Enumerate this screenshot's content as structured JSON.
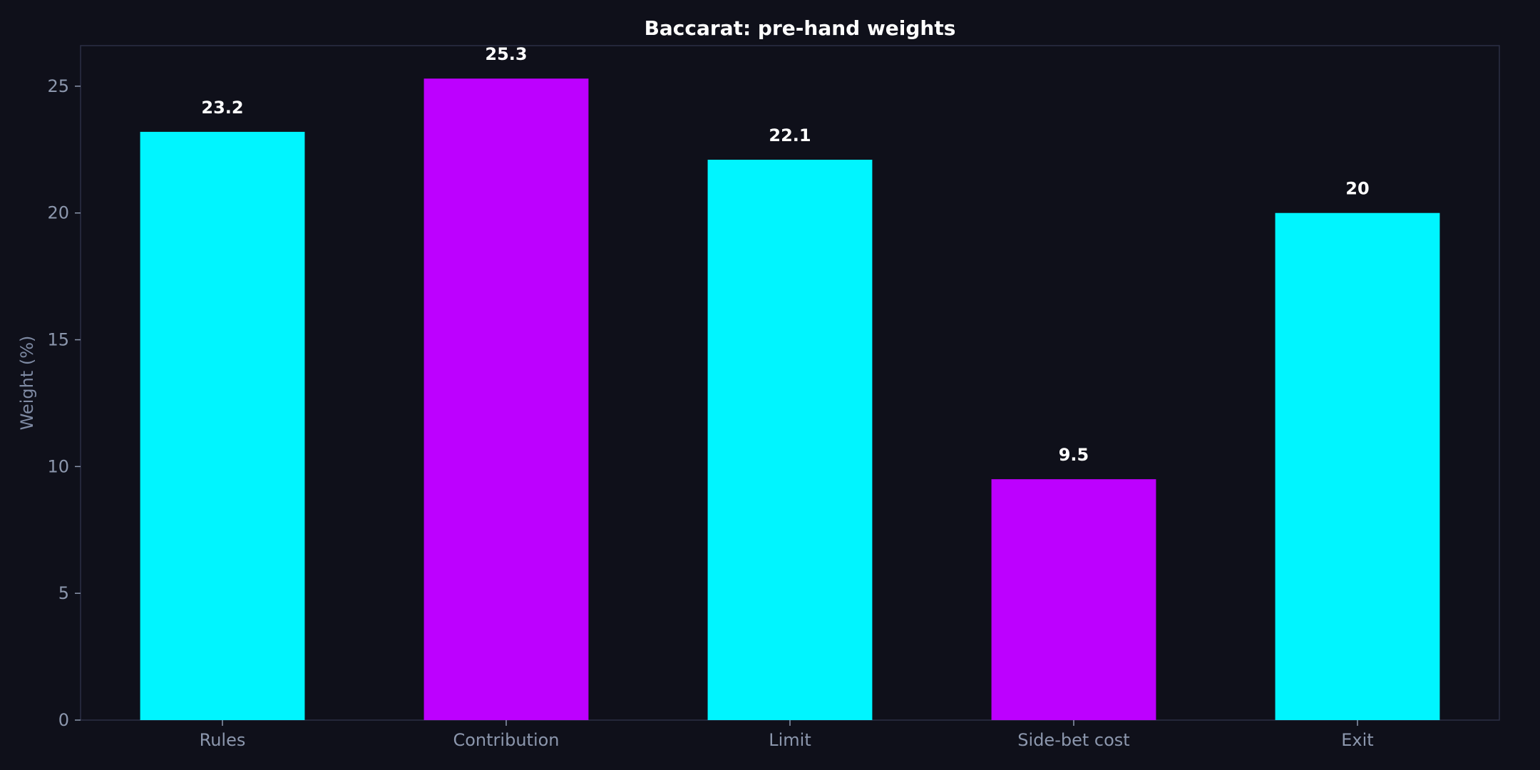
{
  "chart_data": {
    "type": "bar",
    "title": "Baccarat: pre-hand weights",
    "xlabel": "",
    "ylabel": "Weight (%)",
    "categories": [
      "Rules",
      "Contribution",
      "Limit",
      "Side-bet cost",
      "Exit"
    ],
    "values": [
      23.2,
      25.3,
      22.1,
      9.5,
      20
    ],
    "value_labels": [
      "23.2",
      "25.3",
      "22.1",
      "9.5",
      "20"
    ],
    "bar_colors": [
      "#00f5ff",
      "#bd00ff",
      "#00f5ff",
      "#bd00ff",
      "#00f5ff"
    ],
    "ylim": [
      0,
      26.6
    ],
    "yticks": [
      0,
      5,
      10,
      15,
      20,
      25
    ],
    "ytick_labels": [
      "0",
      "5",
      "10",
      "15",
      "20",
      "25"
    ],
    "grid": false,
    "legend": "none"
  }
}
